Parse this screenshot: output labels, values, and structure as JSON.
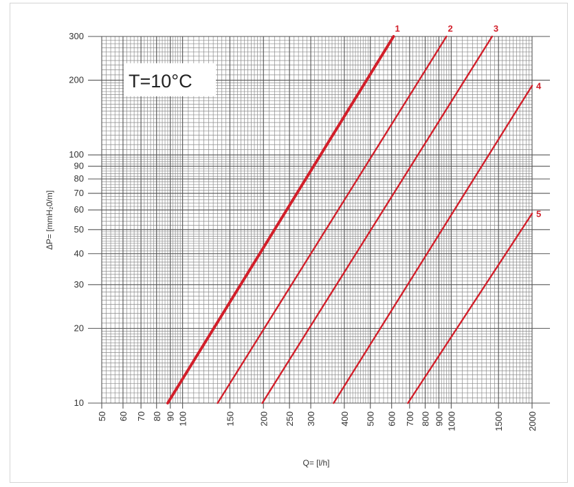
{
  "chart_data": {
    "type": "line",
    "title": "",
    "xlabel": "Q= [l/h]",
    "ylabel": "ΔP= [mmH₂0/m]",
    "x_scale": "log",
    "y_scale": "log",
    "xlim": [
      50,
      2000
    ],
    "ylim": [
      10,
      300
    ],
    "x_tick_labels": [
      "50",
      "60",
      "70",
      "80",
      "90",
      "100",
      "150",
      "200",
      "250",
      "300",
      "400",
      "500",
      "600",
      "700",
      "800",
      "900",
      "1000",
      "1500",
      "2000"
    ],
    "y_tick_labels": [
      "10",
      "20",
      "30",
      "40",
      "50",
      "60",
      "70",
      "80",
      "90",
      "100",
      "200",
      "300"
    ],
    "grid": true,
    "annotation": "T=10°C",
    "series": [
      {
        "label": "1",
        "x": [
          88,
          610
        ],
        "y": [
          10,
          300
        ]
      },
      {
        "label": "2",
        "x": [
          135,
          960
        ],
        "y": [
          10,
          300
        ]
      },
      {
        "label": "3",
        "x": [
          198,
          1420
        ],
        "y": [
          10,
          300
        ]
      },
      {
        "label": "4",
        "x": [
          365,
          2000
        ],
        "y": [
          10,
          190
        ]
      },
      {
        "label": "5",
        "x": [
          690,
          2000
        ],
        "y": [
          10,
          58
        ]
      }
    ],
    "colors": {
      "series": "#d21f2a",
      "grid": "#555555",
      "minor_grid": "#8a8a8a"
    }
  }
}
